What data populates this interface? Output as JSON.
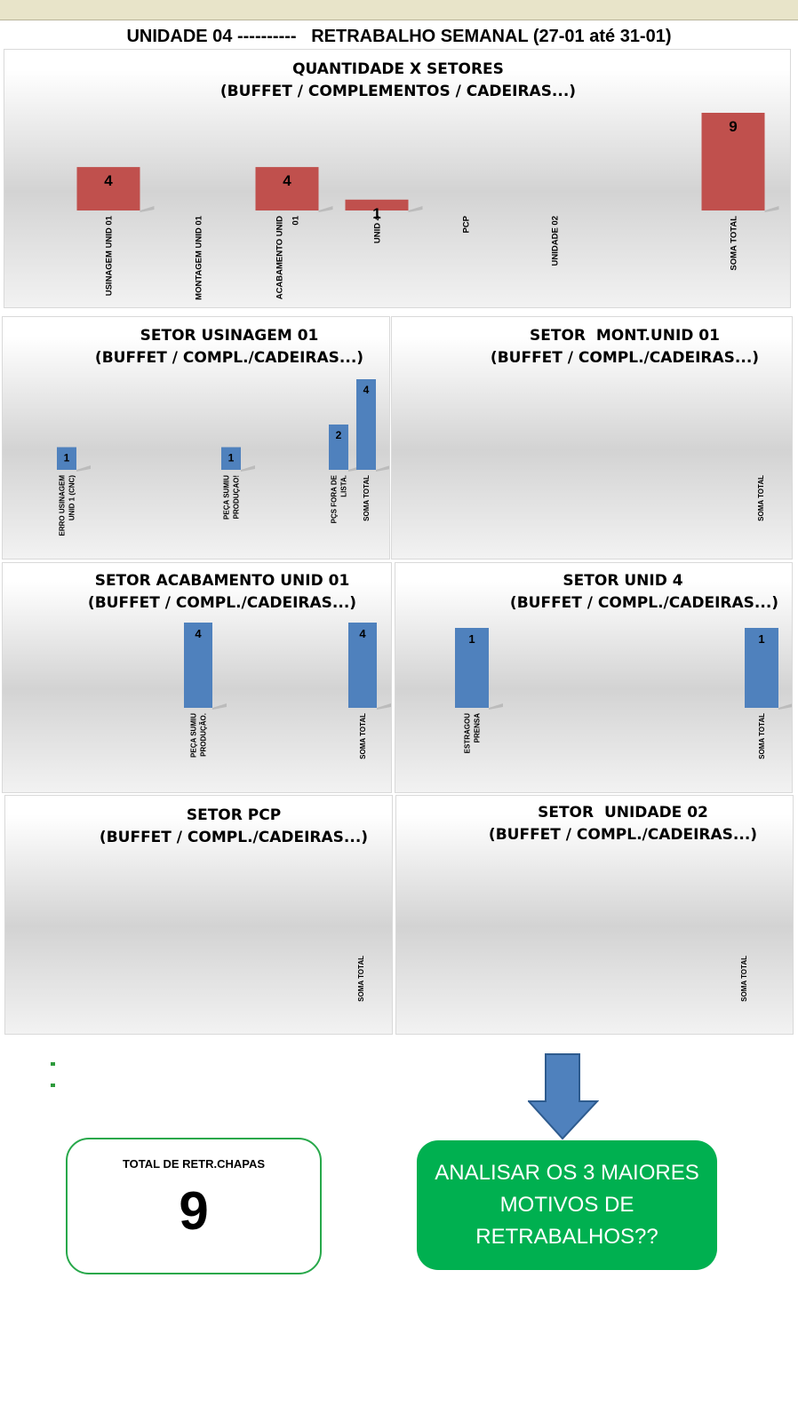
{
  "header": {
    "title": "UNIDADE 04 ----------   RETRABALHO SEMANAL (27-01 até 31-01)"
  },
  "chart_data": [
    {
      "id": "quantidade-setores",
      "type": "bar",
      "title": "QUANTIDADE X SETORES",
      "subtitle": "(BUFFET / COMPLEMENTOS / CADEIRAS...)",
      "color": "#c0504d",
      "categories": [
        "USINAGEM UNID 01",
        "MONTAGEM UNID 01",
        "ACABAMENTO UNID 01",
        "UNID 4",
        "PCP",
        "UNIDADE 02",
        "",
        "SOMA TOTAL"
      ],
      "values": [
        4,
        null,
        4,
        1,
        null,
        null,
        null,
        9
      ],
      "ylim": [
        0,
        9
      ]
    },
    {
      "id": "setor-usinagem",
      "type": "bar",
      "title": "SETOR USINAGEM 01",
      "subtitle": "(BUFFET / COMPL./CADEIRAS...)",
      "color": "#4f81bd",
      "categories": [
        "ERRO USINAGEM UNID 1 (CNC)",
        "",
        "",
        "",
        "",
        "PEÇA SUMIU PRODUÇAO!",
        "",
        "",
        "PÇS FORA DE LISTA.",
        "SOMA TOTAL"
      ],
      "values": [
        1,
        null,
        null,
        null,
        null,
        1,
        null,
        null,
        2,
        4
      ],
      "ylim": [
        0,
        4
      ]
    },
    {
      "id": "setor-montagem",
      "type": "bar",
      "title": "SETOR  MONT.UNID 01",
      "subtitle": "(BUFFET / COMPL./CADEIRAS...)",
      "color": "#4f81bd",
      "categories": [
        "SOMA TOTAL"
      ],
      "values": [
        null
      ],
      "ylim": [
        0,
        4
      ]
    },
    {
      "id": "setor-acabamento",
      "type": "bar",
      "title": "SETOR ACABAMENTO UNID 01",
      "subtitle": "(BUFFET / COMPL./CADEIRAS...)",
      "color": "#4f81bd",
      "categories": [
        "PEÇA SUMIU PRODUÇÃO.",
        "SOMA TOTAL"
      ],
      "values": [
        4,
        4
      ],
      "ylim": [
        0,
        4
      ]
    },
    {
      "id": "setor-unid4",
      "type": "bar",
      "title": "SETOR UNID 4",
      "subtitle": "(BUFFET / COMPL./CADEIRAS...)",
      "color": "#4f81bd",
      "categories": [
        "ESTRAGOU PRENSA",
        "SOMA TOTAL"
      ],
      "values": [
        1,
        1
      ],
      "ylim": [
        0,
        1
      ]
    },
    {
      "id": "setor-pcp",
      "type": "bar",
      "title": "SETOR PCP",
      "subtitle": "(BUFFET / COMPL./CADEIRAS...)",
      "color": "#4f81bd",
      "categories": [
        "SOMA TOTAL"
      ],
      "values": [
        null
      ],
      "ylim": [
        0,
        4
      ]
    },
    {
      "id": "setor-unidade02",
      "type": "bar",
      "title": "SETOR  UNIDADE 02",
      "subtitle": "(BUFFET / COMPL./CADEIRAS...)",
      "color": "#4f81bd",
      "categories": [
        "SOMA TOTAL"
      ],
      "values": [
        null
      ],
      "ylim": [
        0,
        4
      ]
    }
  ],
  "summary": {
    "total_label": "TOTAL DE RETR.CHAPAS",
    "total_value": "9"
  },
  "action": {
    "text": "ANALISAR OS 3 MAIORES MOTIVOS DE RETRABALHOS??",
    "arrow_icon": "arrow-down-icon",
    "color": "#00b050"
  }
}
